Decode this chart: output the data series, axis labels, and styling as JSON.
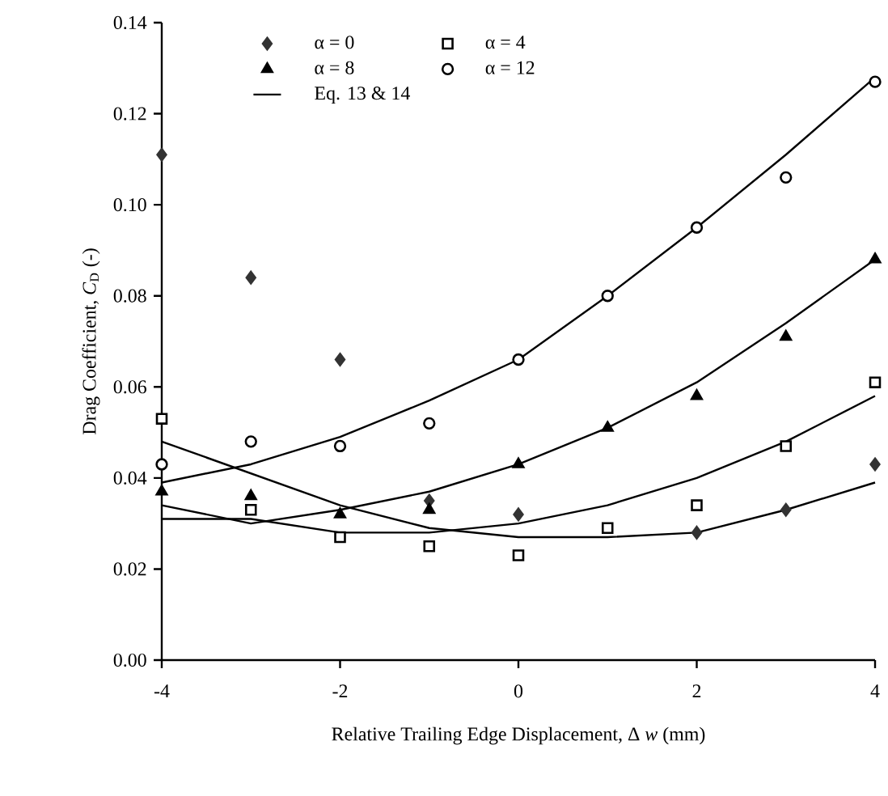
{
  "chart_data": {
    "type": "scatter",
    "xlabel": "Relative Trailing Edge Displacement, Δ *w* (mm)",
    "ylabel": "Drag Coefficient, *C*$_{D}$ (-)",
    "xlim": [
      -4,
      4
    ],
    "xticks": [
      -4,
      -2,
      0,
      2,
      4
    ],
    "ylim": [
      0,
      0.14
    ],
    "yticks": [
      {
        "value": 0,
        "label": "0.00"
      },
      {
        "value": 0.02,
        "label": "0.02"
      },
      {
        "value": 0.04,
        "label": "0.04"
      },
      {
        "value": 0.06,
        "label": "0.06"
      },
      {
        "value": 0.08,
        "label": "0.08"
      },
      {
        "value": 0.1,
        "label": "0.10"
      },
      {
        "value": 0.12,
        "label": "0.12"
      },
      {
        "value": 0.14,
        "label": "0.14"
      }
    ],
    "grid": false,
    "legend": "top left",
    "series": [
      {
        "name": "α = 0",
        "marker": "diamond",
        "color": "#333333",
        "x": [
          -4,
          -3,
          -2,
          -1,
          0,
          1,
          2,
          3,
          4
        ],
        "values": [
          0.111,
          0.084,
          0.066,
          0.035,
          0.032,
          null,
          0.028,
          0.033,
          0.043
        ]
      },
      {
        "name": "α = 4",
        "marker": "square",
        "color": "#000000",
        "x": [
          -4,
          -3,
          -2,
          -1,
          0,
          1,
          2,
          3,
          4
        ],
        "values": [
          0.053,
          0.033,
          0.027,
          0.025,
          0.023,
          0.029,
          0.034,
          0.047,
          0.061
        ]
      },
      {
        "name": "α = 8",
        "marker": "triangle",
        "color": "#000000",
        "x": [
          -4,
          -3,
          -2,
          -1,
          0,
          1,
          2,
          3,
          4
        ],
        "values": [
          0.037,
          0.036,
          0.032,
          0.033,
          0.043,
          0.051,
          0.058,
          0.071,
          0.088
        ]
      },
      {
        "name": "α = 12",
        "marker": "circle",
        "color": "#000000",
        "x": [
          -4,
          -3,
          -2,
          -1,
          0,
          1,
          2,
          3,
          4
        ],
        "values": [
          0.043,
          0.048,
          0.047,
          0.052,
          0.066,
          0.08,
          0.095,
          0.106,
          0.127
        ]
      },
      {
        "name": "Eq. 13 & 14",
        "type": "line",
        "marker": "none",
        "color": "#000000",
        "x": [
          -4,
          -3,
          -2,
          -1,
          0,
          1,
          2,
          3,
          4
        ],
        "values": [
          0.039,
          0.043,
          0.049,
          0.057,
          0.066,
          0.08,
          0.095,
          0.111,
          0.128
        ]
      },
      {
        "type": "line",
        "marker": "none",
        "color": "#000000",
        "x": [
          -4,
          -3,
          -2,
          -1,
          0,
          1,
          2,
          3,
          4
        ],
        "values": [
          0.034,
          0.03,
          0.033,
          0.037,
          0.043,
          0.051,
          0.061,
          0.074,
          0.088
        ]
      },
      {
        "type": "line",
        "marker": "none",
        "color": "#000000",
        "x": [
          -4,
          -3,
          -2,
          -1,
          0,
          1,
          2,
          3,
          4
        ],
        "values": [
          0.031,
          0.031,
          0.028,
          0.028,
          0.03,
          0.034,
          0.04,
          0.048,
          0.058
        ]
      },
      {
        "type": "line",
        "marker": "none",
        "color": "#000000",
        "x": [
          -4,
          -3,
          -2,
          -1,
          0,
          1,
          2,
          3,
          4
        ],
        "values": [
          0.048,
          0.041,
          0.034,
          0.029,
          0.027,
          0.027,
          0.028,
          0.033,
          0.039
        ]
      }
    ]
  }
}
